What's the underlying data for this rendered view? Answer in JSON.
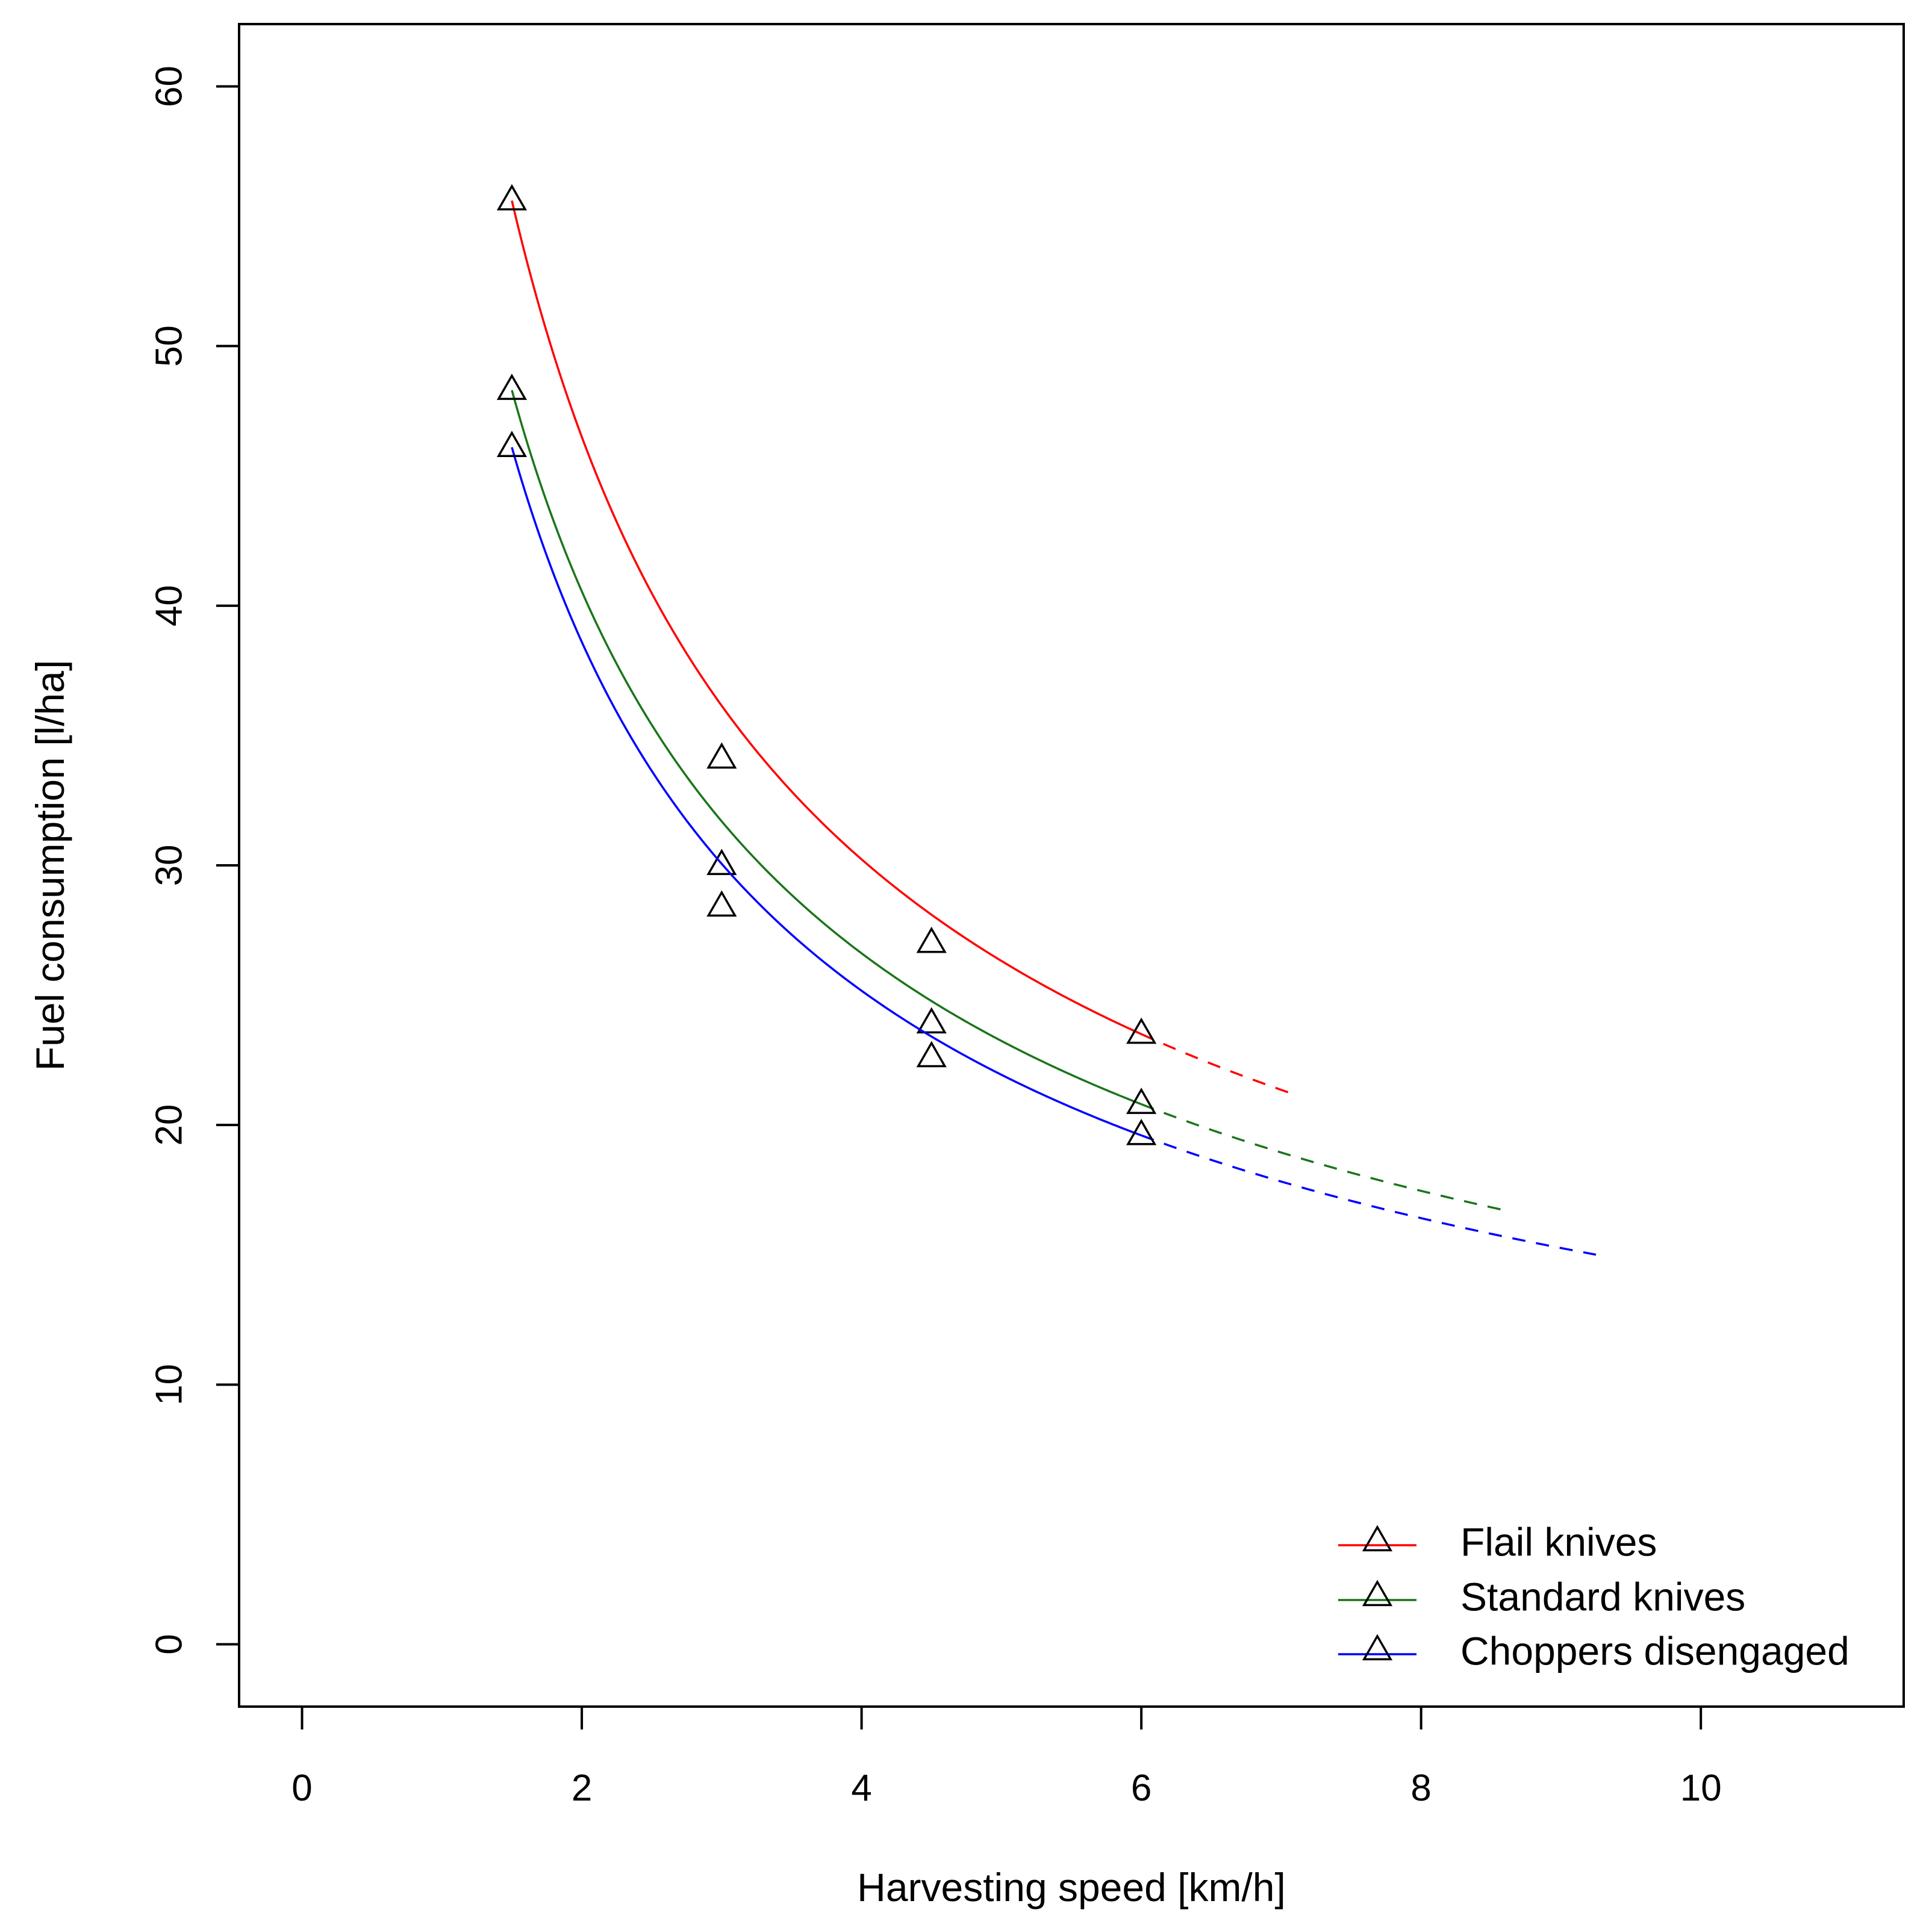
{
  "chart_data": {
    "type": "scatter",
    "xlabel": "Harvesting speed [km/h]",
    "ylabel": "Fuel consumption [l/ha]",
    "xlim": [
      -0.45,
      11.45
    ],
    "ylim": [
      -2.4,
      62.4
    ],
    "x_ticks": [
      0,
      2,
      4,
      6,
      8,
      10
    ],
    "y_ticks": [
      0,
      10,
      20,
      30,
      40,
      50,
      60
    ],
    "marker": "triangle-open",
    "legend_position": "bottom-right",
    "fit_model": "y = a / x^b (solid over measured range, dashed extrapolation)",
    "series": [
      {
        "name": "Flail knives",
        "color": "#ff0000",
        "x": [
          1.5,
          3.0,
          4.5,
          6.0
        ],
        "y": [
          55.6,
          34.1,
          27.0,
          23.5
        ],
        "fit_range": [
          1.5,
          6.0
        ],
        "extrapolate_to": 7.1
      },
      {
        "name": "Standard knives",
        "color": "#1a751a",
        "x": [
          1.5,
          3.0,
          4.5,
          6.0
        ],
        "y": [
          48.3,
          30.0,
          23.9,
          20.8
        ],
        "fit_range": [
          1.5,
          6.0
        ],
        "extrapolate_to": 8.6
      },
      {
        "name": "Choppers disengaged",
        "color": "#0000ff",
        "x": [
          1.5,
          3.0,
          4.5,
          6.0
        ],
        "y": [
          46.1,
          28.4,
          22.6,
          19.6
        ],
        "fit_range": [
          1.5,
          6.0
        ],
        "extrapolate_to": 9.25
      }
    ]
  }
}
